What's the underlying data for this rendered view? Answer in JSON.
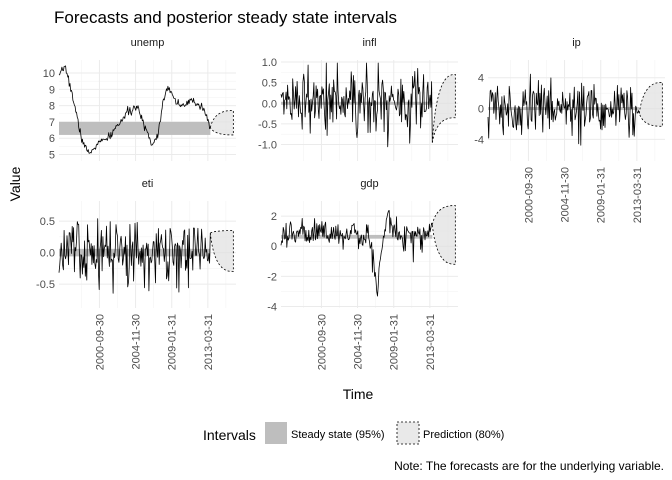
{
  "chart_data": {
    "type": "line",
    "title": "Forecasts and posterior steady state intervals",
    "xlabel": "Time",
    "ylabel": "Value",
    "x_ticks": [
      "2000-09-30",
      "2004-11-30",
      "2009-01-31",
      "2013-03-31"
    ],
    "x_range": [
      "1996-01-31",
      "2016-06-30"
    ],
    "legend": {
      "title": "Intervals",
      "position": "bottom",
      "entries": [
        "Steady state (95%)",
        "Prediction (80%)"
      ]
    },
    "caption": "Note: The forecasts are for the underlying variable.",
    "panels": [
      {
        "name": "unemp",
        "ylim": [
          4.6,
          10.8
        ],
        "yticks": [
          "10",
          "9",
          "8",
          "7",
          "6",
          "5"
        ],
        "ytick_values": [
          10,
          9,
          8,
          7,
          6,
          5
        ],
        "steady_state": [
          6.2,
          7.0
        ],
        "prediction": [
          6.2,
          7.7
        ],
        "anchors": [
          [
            0,
            9.7
          ],
          [
            4,
            10.5
          ],
          [
            9,
            8.6
          ],
          [
            15,
            6.0
          ],
          [
            20,
            5.0
          ],
          [
            26,
            5.7
          ],
          [
            33,
            6.0
          ],
          [
            40,
            6.9
          ],
          [
            46,
            7.6
          ],
          [
            52,
            7.9
          ],
          [
            58,
            6.6
          ],
          [
            62,
            5.6
          ],
          [
            66,
            6.2
          ],
          [
            70,
            8.6
          ],
          [
            73,
            9.2
          ],
          [
            77,
            8.4
          ],
          [
            83,
            7.9
          ],
          [
            88,
            8.3
          ],
          [
            93,
            8.1
          ],
          [
            97,
            7.8
          ],
          [
            101,
            6.7
          ]
        ],
        "noise": 0.12
      },
      {
        "name": "infl",
        "ylim": [
          -1.4,
          1.05
        ],
        "yticks": [
          "1.0",
          "0.5",
          "0.0",
          "-0.5",
          "-1.0"
        ],
        "ytick_values": [
          1.0,
          0.5,
          0.0,
          -0.5,
          -1.0
        ],
        "steady_state": [
          0.0,
          0.0
        ],
        "prediction": [
          -0.35,
          0.7
        ],
        "mean": 0.05,
        "sd": 0.38,
        "noise": 0
      },
      {
        "name": "ip",
        "ylim": [
          -6.8,
          6.3
        ],
        "yticks": [
          "4",
          "0",
          "-4"
        ],
        "ytick_values": [
          4,
          0,
          -4
        ],
        "steady_state": [
          0.0,
          0.0
        ],
        "prediction": [
          -2.3,
          3.4
        ],
        "mean": 0.0,
        "sd": 1.7,
        "noise": 0
      },
      {
        "name": "eti",
        "ylim": [
          -0.88,
          0.82
        ],
        "yticks": [
          "0.5",
          "0.0",
          "-0.5"
        ],
        "ytick_values": [
          0.5,
          0.0,
          -0.5
        ],
        "steady_state": [
          -0.06,
          0.06
        ],
        "prediction": [
          -0.3,
          0.35
        ],
        "mean": 0.0,
        "sd": 0.25,
        "noise": 0
      },
      {
        "name": "gdp",
        "ylim": [
          -4.1,
          3.0
        ],
        "yticks": [
          "2",
          "0",
          "-2",
          "-4"
        ],
        "ytick_values": [
          2,
          0,
          -2,
          -4
        ],
        "steady_state": [
          0.5,
          0.75
        ],
        "prediction": [
          -1.2,
          2.7
        ],
        "anchors": [
          [
            0,
            0.6
          ],
          [
            12,
            1.2
          ],
          [
            24,
            1.0
          ],
          [
            36,
            0.9
          ],
          [
            50,
            0.9
          ],
          [
            58,
            0.5
          ],
          [
            62,
            -0.8
          ],
          [
            64,
            -3.7
          ],
          [
            66,
            -1.2
          ],
          [
            69,
            1.1
          ],
          [
            71,
            2.2
          ],
          [
            74,
            1.5
          ],
          [
            80,
            0.5
          ],
          [
            88,
            0.8
          ],
          [
            96,
            0.6
          ],
          [
            101,
            1.2
          ]
        ],
        "noise": 0.45
      }
    ]
  }
}
